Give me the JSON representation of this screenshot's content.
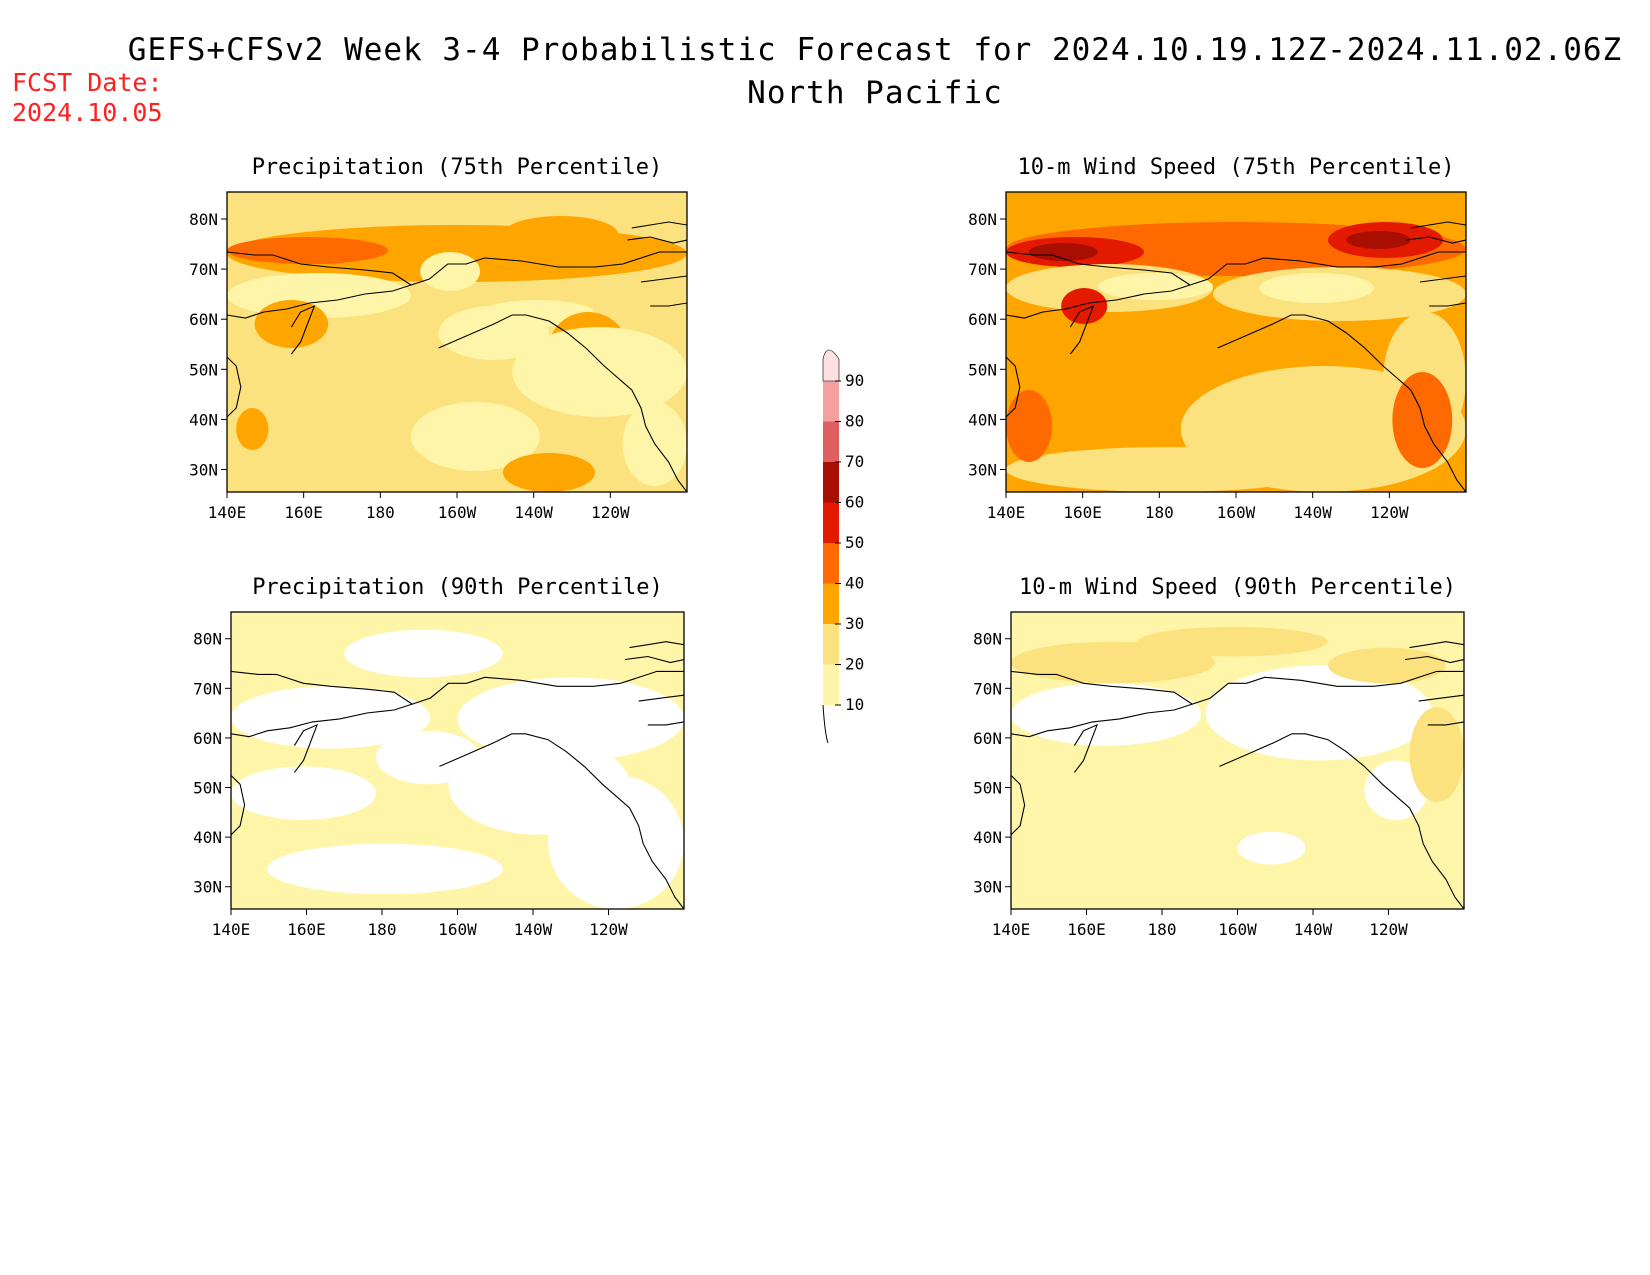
{
  "header": {
    "title": "GEFS+CFSv2 Week 3-4 Probabilistic Forecast for 2024.10.19.12Z-2024.11.02.06Z",
    "subtitle": "North Pacific",
    "fcst_label": "FCST Date:",
    "fcst_date": "2024.10.05"
  },
  "panels": [
    {
      "title": "Precipitation (75th Percentile)"
    },
    {
      "title": "10-m Wind Speed (75th Percentile)"
    },
    {
      "title": "Precipitation (90th Percentile)"
    },
    {
      "title": "10-m Wind Speed (90th Percentile)"
    }
  ],
  "axes": {
    "lon_labels": [
      "140E",
      "160E",
      "180",
      "160W",
      "140W",
      "120W"
    ],
    "lat_labels": [
      "80N",
      "70N",
      "60N",
      "50N",
      "40N",
      "30N"
    ]
  },
  "colorbar": {
    "levels": [
      10,
      20,
      30,
      40,
      50,
      60,
      70,
      80,
      90
    ],
    "labels": [
      "10",
      "20",
      "30",
      "40",
      "50",
      "60",
      "70",
      "80",
      "90"
    ],
    "colors": [
      "#fff5a8",
      "#fbe27e",
      "#ffa500",
      "#ff6a00",
      "#e41a00",
      "#a80f00",
      "#e06060",
      "#f4a0a0",
      "#ffe0e0"
    ]
  }
}
